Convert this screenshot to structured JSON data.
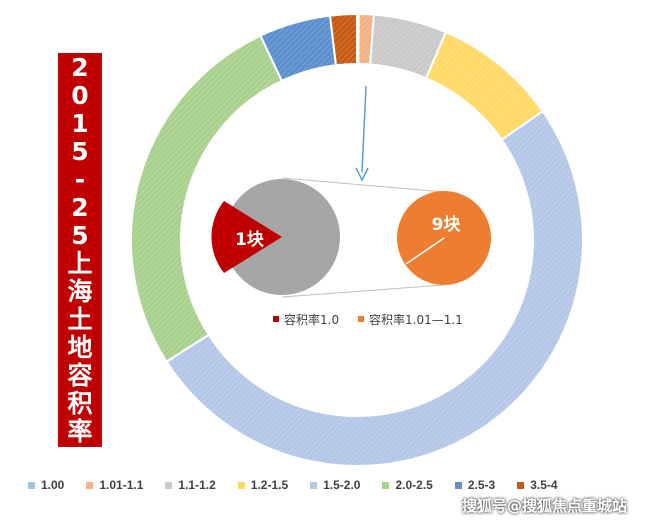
{
  "title_chars": [
    "2",
    "0",
    "1",
    "5",
    "-",
    "2",
    "5",
    "上",
    "海",
    "土",
    "地",
    "容",
    "积",
    "率"
  ],
  "chart_data": {
    "type": "pie",
    "categories": [
      "1.00",
      "1.01-1.1",
      "1.1-1.2",
      "1.2-1.5",
      "1.5-2.0",
      "2.0-2.5",
      "2.5-3",
      "3.5-4"
    ],
    "values": [
      1,
      9,
      44,
      75,
      425,
      227,
      43,
      16
    ],
    "colors": [
      "#9dc3e6",
      "#f4b183",
      "#c9c9c9",
      "#ffd966",
      "#b4c7e7",
      "#a9d18e",
      "#5b8fce",
      "#c55a11"
    ],
    "legend_position": "bottom",
    "inset": {
      "slices": [
        {
          "label": "1块",
          "value": 1,
          "color": "#c00000",
          "legend": "容积率1.0"
        },
        {
          "label": "9块",
          "value": 9,
          "color": "#ed7d31",
          "legend": "容积率1.01—1.1"
        }
      ],
      "left_pie_color": "#a6a6a6"
    }
  },
  "watermark": "搜狐号@搜狐焦点重城站"
}
